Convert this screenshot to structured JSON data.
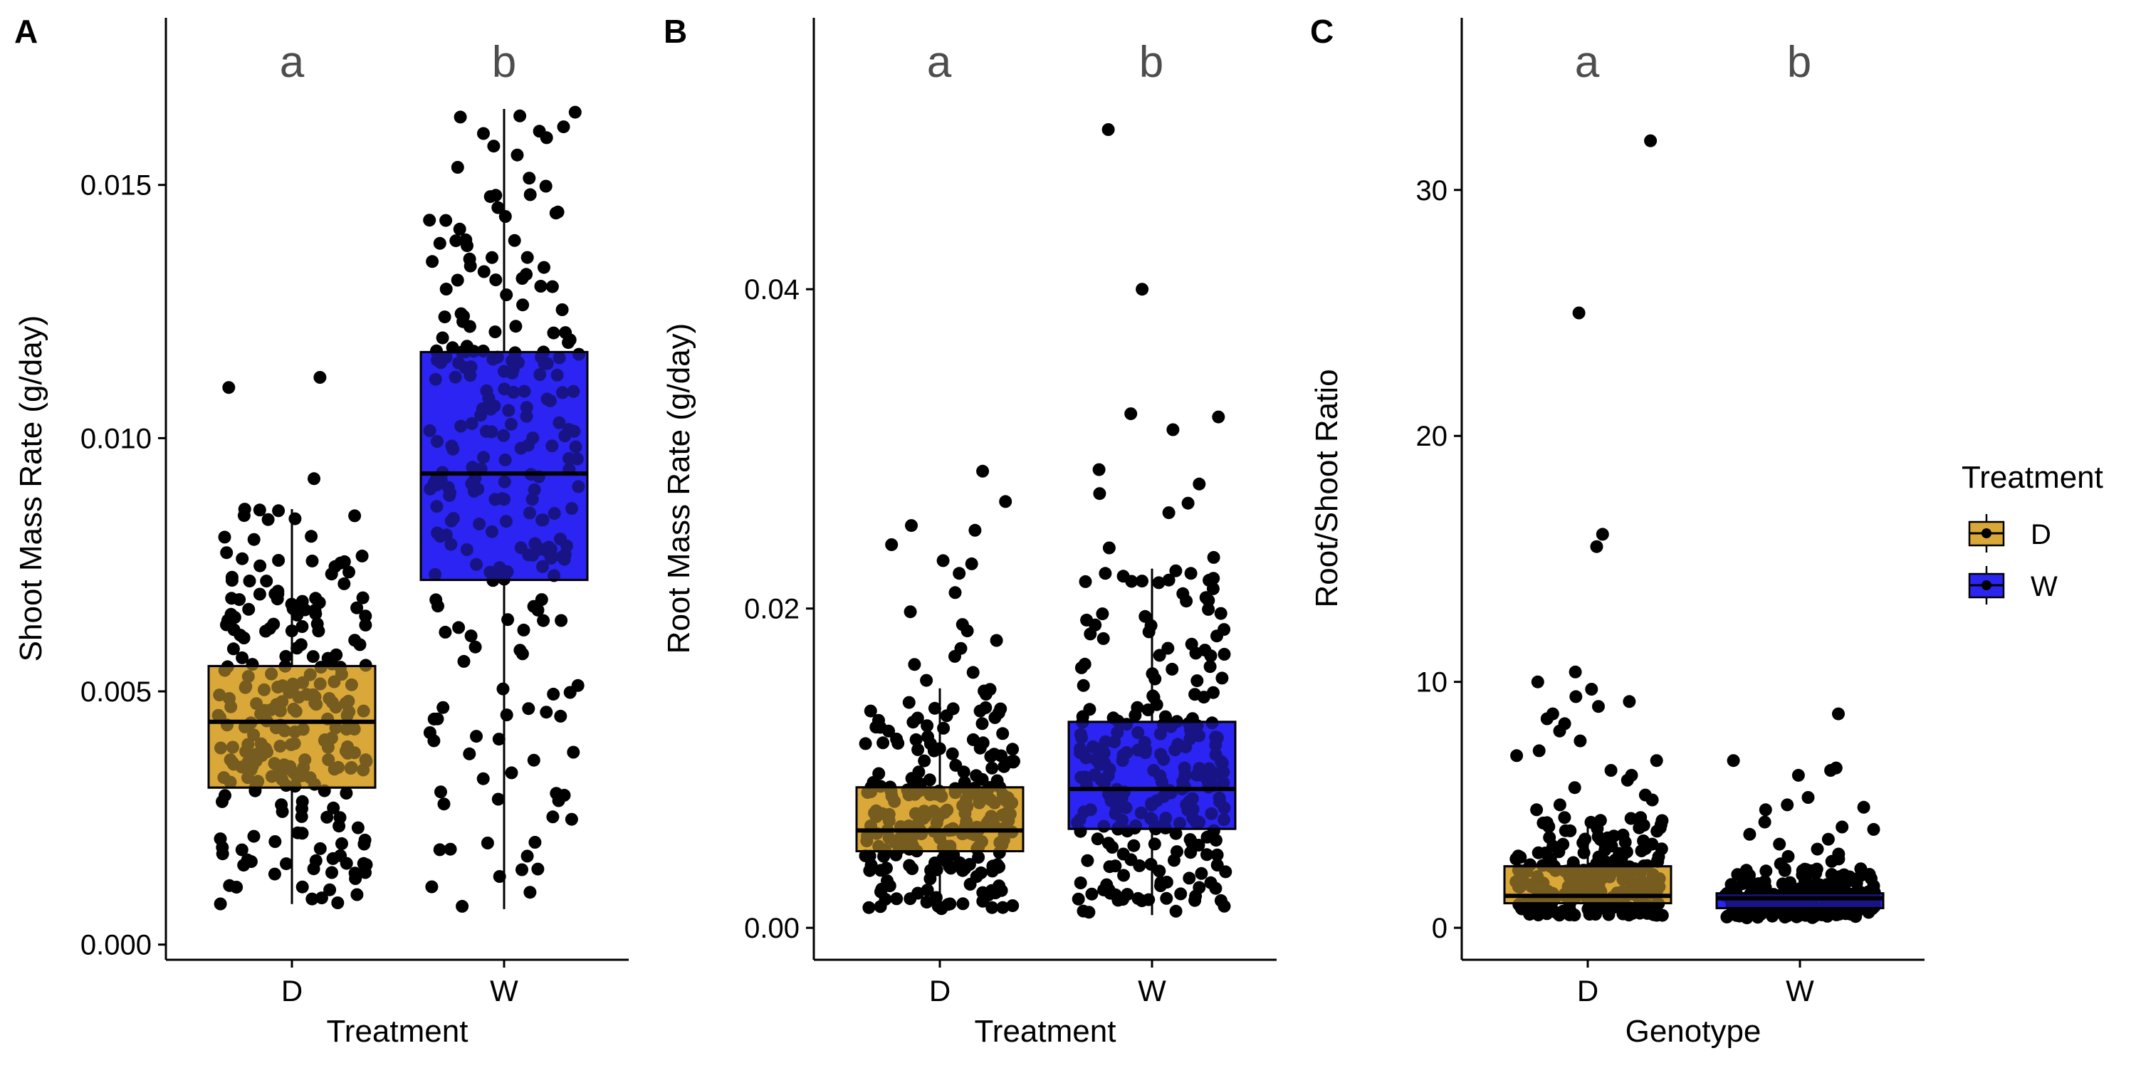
{
  "colors": {
    "D": "#D9A839",
    "W": "#2B25F2",
    "points": "#000000",
    "axis": "#000000",
    "sig_letters": "#4D4D4D"
  },
  "legend": {
    "title": "Treatment",
    "items": [
      {
        "label": "D",
        "color": "#D9A839"
      },
      {
        "label": "W",
        "color": "#2B25F2"
      }
    ]
  },
  "chart_data": [
    {
      "panel": "A",
      "type": "box",
      "xlabel": "Treatment",
      "ylabel": "Shoot Mass Rate (g/day)",
      "categories": [
        "D",
        "W"
      ],
      "sig_letters": [
        "a",
        "b"
      ],
      "ylim": [
        -0.0003,
        0.0183
      ],
      "yticks": [
        0,
        0.005,
        0.01,
        0.015
      ],
      "ytick_labels": [
        "0.000",
        "0.005",
        "0.010",
        "0.015"
      ],
      "boxes": [
        {
          "group": "D",
          "whisker_low": 0.0008,
          "q1": 0.0031,
          "median": 0.0044,
          "q3": 0.0055,
          "whisker_high": 0.0086,
          "n": 250,
          "outliers": [
            0.0112,
            0.011,
            0.0092
          ]
        },
        {
          "group": "W",
          "whisker_low": 0.0007,
          "q1": 0.0072,
          "median": 0.0093,
          "q3": 0.0117,
          "whisker_high": 0.0165,
          "n": 250,
          "outliers": []
        }
      ]
    },
    {
      "panel": "B",
      "type": "box",
      "xlabel": "Treatment",
      "ylabel": "Root Mass Rate (g/day)",
      "categories": [
        "D",
        "W"
      ],
      "sig_letters": [
        "a",
        "b"
      ],
      "ylim": [
        -0.002,
        0.057
      ],
      "yticks": [
        0,
        0.02,
        0.04
      ],
      "ytick_labels": [
        "0.00",
        "0.02",
        "0.04"
      ],
      "boxes": [
        {
          "group": "D",
          "whisker_low": 0.0012,
          "q1": 0.0048,
          "median": 0.0061,
          "q3": 0.0088,
          "whisker_high": 0.015,
          "n": 250,
          "outliers": [
            0.0286,
            0.0267,
            0.0252,
            0.0249,
            0.024,
            0.023,
            0.0228,
            0.0222,
            0.021,
            0.0198,
            0.019,
            0.0186,
            0.018,
            0.0175,
            0.017,
            0.0165,
            0.016,
            0.0155
          ]
        },
        {
          "group": "W",
          "whisker_low": 0.0008,
          "q1": 0.0062,
          "median": 0.0087,
          "q3": 0.0129,
          "whisker_high": 0.0225,
          "n": 250,
          "outliers": [
            0.05,
            0.04,
            0.0322,
            0.032,
            0.0312,
            0.0287,
            0.0278,
            0.0272,
            0.0266,
            0.026,
            0.0238,
            0.0232
          ]
        }
      ]
    },
    {
      "panel": "C",
      "type": "box",
      "xlabel": "Genotype",
      "ylabel": "Root/Shoot Ratio",
      "categories": [
        "D",
        "W"
      ],
      "sig_letters": [
        "a",
        "b"
      ],
      "ylim": [
        -1.3,
        37.0
      ],
      "yticks": [
        0,
        10,
        20,
        30
      ],
      "ytick_labels": [
        "0",
        "10",
        "20",
        "30"
      ],
      "boxes": [
        {
          "group": "D",
          "whisker_low": 0.5,
          "q1": 1.0,
          "median": 1.3,
          "q3": 2.5,
          "whisker_high": 4.5,
          "n": 250,
          "outliers": [
            32,
            25,
            16,
            15.5,
            10.4,
            10,
            9.7,
            9.4,
            9.2,
            9.0,
            8.7,
            8.5,
            8.3,
            8.0,
            7.6,
            7.2,
            7.0,
            6.8,
            6.4,
            6.2,
            6.0,
            5.7,
            5.4,
            5.2,
            5.0,
            4.8
          ]
        },
        {
          "group": "W",
          "whisker_low": 0.4,
          "q1": 0.8,
          "median": 1.2,
          "q3": 1.4,
          "whisker_high": 2.4,
          "n": 250,
          "outliers": [
            8.7,
            6.8,
            6.5,
            6.4,
            6.2,
            5.3,
            5.0,
            4.9,
            4.8,
            4.3,
            4.1,
            4.0,
            3.8,
            3.6,
            3.4,
            3.2,
            3.0,
            2.9,
            2.8,
            2.7,
            2.6
          ]
        }
      ]
    }
  ]
}
